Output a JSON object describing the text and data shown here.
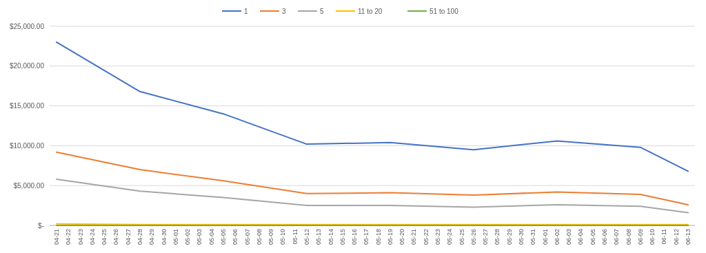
{
  "chart_data": {
    "type": "line",
    "categories": [
      "04-21",
      "04-22",
      "04-23",
      "04-24",
      "04-25",
      "04-26",
      "04-27",
      "04-28",
      "04-29",
      "04-30",
      "05-01",
      "05-02",
      "05-03",
      "05-04",
      "05-05",
      "05-06",
      "05-07",
      "05-08",
      "05-09",
      "05-10",
      "05-11",
      "05-12",
      "05-13",
      "05-14",
      "05-15",
      "05-16",
      "05-17",
      "05-18",
      "05-19",
      "05-20",
      "05-21",
      "05-22",
      "05-23",
      "05-24",
      "05-25",
      "05-26",
      "05-27",
      "05-28",
      "05-29",
      "05-30",
      "05-31",
      "06-01",
      "06-02",
      "06-03",
      "06-04",
      "06-05",
      "06-06",
      "06-07",
      "06-08",
      "06-09",
      "06-10",
      "06-11",
      "06-12",
      "06-13"
    ],
    "series": [
      {
        "name": "1",
        "color": "#4472c4",
        "values": [
          23000,
          null,
          null,
          null,
          null,
          null,
          null,
          16800,
          null,
          null,
          null,
          null,
          null,
          null,
          14000,
          null,
          null,
          null,
          null,
          null,
          null,
          10200,
          null,
          null,
          null,
          null,
          null,
          null,
          10400,
          null,
          null,
          null,
          null,
          null,
          null,
          9500,
          null,
          null,
          null,
          null,
          null,
          null,
          10600,
          null,
          null,
          null,
          null,
          null,
          null,
          9800,
          null,
          null,
          null,
          6800
        ]
      },
      {
        "name": "3",
        "color": "#ed7d31",
        "values": [
          9200,
          null,
          null,
          null,
          null,
          null,
          null,
          7000,
          null,
          null,
          null,
          null,
          null,
          null,
          5600,
          null,
          null,
          null,
          null,
          null,
          null,
          4000,
          null,
          null,
          null,
          null,
          null,
          null,
          4100,
          null,
          null,
          null,
          null,
          null,
          null,
          3800,
          null,
          null,
          null,
          null,
          null,
          null,
          4200,
          null,
          null,
          null,
          null,
          null,
          null,
          3900,
          null,
          null,
          null,
          2600
        ]
      },
      {
        "name": "5",
        "color": "#a5a5a5",
        "values": [
          5800,
          null,
          null,
          null,
          null,
          null,
          null,
          4300,
          null,
          null,
          null,
          null,
          null,
          null,
          3500,
          null,
          null,
          null,
          null,
          null,
          null,
          2500,
          null,
          null,
          null,
          null,
          null,
          null,
          2500,
          null,
          null,
          null,
          null,
          null,
          null,
          2300,
          null,
          null,
          null,
          null,
          null,
          null,
          2600,
          null,
          null,
          null,
          null,
          null,
          null,
          2400,
          null,
          null,
          null,
          1600
        ]
      },
      {
        "name": "11 to 20",
        "color": "#ffc000",
        "values": [
          200,
          null,
          null,
          null,
          null,
          null,
          null,
          100,
          null,
          null,
          null,
          null,
          null,
          null,
          100,
          null,
          null,
          null,
          null,
          null,
          null,
          100,
          null,
          null,
          null,
          null,
          null,
          null,
          100,
          null,
          null,
          null,
          null,
          null,
          null,
          100,
          null,
          null,
          null,
          null,
          null,
          null,
          100,
          null,
          null,
          null,
          null,
          null,
          null,
          100,
          null,
          null,
          null,
          100
        ]
      },
      {
        "name": "51 to 100",
        "color": "#70ad47",
        "values": [
          0,
          null,
          null,
          null,
          null,
          null,
          null,
          0,
          null,
          null,
          null,
          null,
          null,
          null,
          0,
          null,
          null,
          null,
          null,
          null,
          null,
          0,
          null,
          null,
          null,
          null,
          null,
          null,
          0,
          null,
          null,
          null,
          null,
          null,
          null,
          0,
          null,
          null,
          null,
          null,
          null,
          null,
          0,
          null,
          null,
          null,
          null,
          null,
          null,
          0,
          null,
          null,
          null,
          0
        ]
      }
    ],
    "ylim": [
      0,
      25000
    ],
    "yticks": [
      {
        "value": 0,
        "label": "$-"
      },
      {
        "value": 5000,
        "label": "$5,000.00"
      },
      {
        "value": 10000,
        "label": "$10,000.00"
      },
      {
        "value": 15000,
        "label": "$15,000.00"
      },
      {
        "value": 20000,
        "label": "$20,000.00"
      },
      {
        "value": 25000,
        "label": "$25,000.00"
      }
    ],
    "grid": "y",
    "legend": "top",
    "marker": "none",
    "line_style": "solid"
  }
}
